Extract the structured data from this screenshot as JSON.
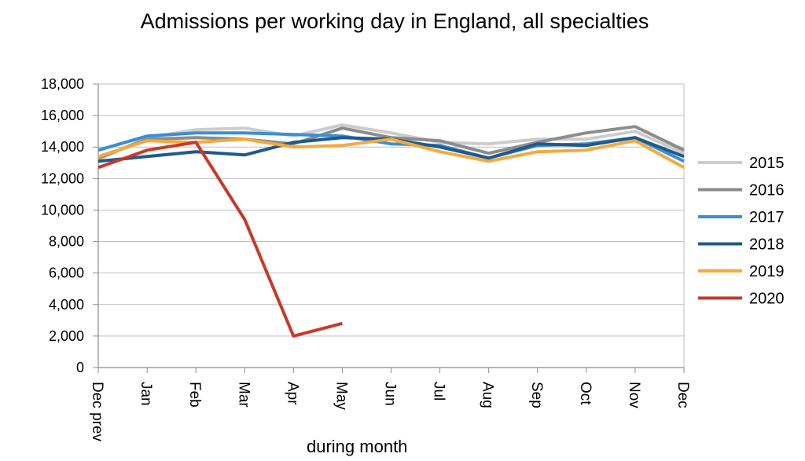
{
  "chart_data": {
    "type": "line",
    "title": "Admissions per working day in England, all specialties",
    "xlabel": "during  month",
    "ylabel": "",
    "categories": [
      "Dec prev",
      "Jan",
      "Feb",
      "Mar",
      "Apr",
      "May",
      "Jun",
      "Jul",
      "Aug",
      "Sep",
      "Oct",
      "Nov",
      "Dec"
    ],
    "ylim": [
      0,
      18000
    ],
    "yticks": [
      {
        "value": 0,
        "label": "0"
      },
      {
        "value": 2000,
        "label": "2,000"
      },
      {
        "value": 4000,
        "label": "4,000"
      },
      {
        "value": 6000,
        "label": "6,000"
      },
      {
        "value": 8000,
        "label": "8,000"
      },
      {
        "value": 10000,
        "label": "10,000"
      },
      {
        "value": 12000,
        "label": "12,000"
      },
      {
        "value": 14000,
        "label": "14,000"
      },
      {
        "value": 16000,
        "label": "16,000"
      },
      {
        "value": 18000,
        "label": "18,000"
      }
    ],
    "grid": true,
    "legend": "right",
    "series": [
      {
        "name": "2015",
        "color": "#cccccc",
        "values": [
          13200,
          14600,
          15100,
          15200,
          14700,
          15400,
          14900,
          14300,
          14200,
          14500,
          14500,
          15000,
          13600
        ]
      },
      {
        "name": "2016",
        "color": "#8c8c8c",
        "values": [
          13300,
          14500,
          14600,
          14500,
          14200,
          15200,
          14600,
          14400,
          13600,
          14300,
          14900,
          15300,
          13800
        ]
      },
      {
        "name": "2017",
        "color": "#3a8fd4",
        "values": [
          13800,
          14700,
          14900,
          14900,
          14800,
          14700,
          14200,
          14100,
          13300,
          14100,
          14200,
          14600,
          13100
        ]
      },
      {
        "name": "2018",
        "color": "#1f5a8a",
        "values": [
          13100,
          13400,
          13700,
          13500,
          14300,
          14600,
          14500,
          14000,
          13300,
          14200,
          14100,
          14600,
          13400
        ]
      },
      {
        "name": "2019",
        "color": "#f5a93e",
        "values": [
          13400,
          14400,
          14300,
          14500,
          14000,
          14100,
          14500,
          13700,
          13100,
          13700,
          13800,
          14400,
          12700
        ]
      },
      {
        "name": "2020",
        "color": "#c63a2a",
        "values": [
          12700,
          13800,
          14300,
          9400,
          2000,
          2800,
          null,
          null,
          null,
          null,
          null,
          null,
          null
        ]
      }
    ]
  }
}
